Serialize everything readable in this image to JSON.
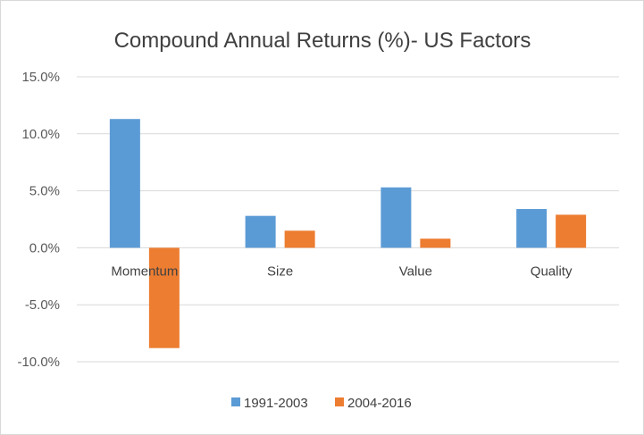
{
  "chart_data": {
    "type": "bar",
    "title": "Compound Annual Returns (%)- US Factors",
    "categories": [
      "Momentum",
      "Size",
      "Value",
      "Quality"
    ],
    "series": [
      {
        "name": "1991-2003",
        "values": [
          11.3,
          2.8,
          5.3,
          3.4
        ],
        "color": "#5b9bd5"
      },
      {
        "name": "2004-2016",
        "values": [
          -8.8,
          1.5,
          0.8,
          2.9
        ],
        "color": "#ed7d31"
      }
    ],
    "ylim": [
      -10,
      15
    ],
    "yticks": [
      15,
      10,
      5,
      0,
      -5,
      -10
    ],
    "ytick_labels": [
      "15.0%",
      "10.0%",
      "5.0%",
      "0.0%",
      "-5.0%",
      "-10.0%"
    ],
    "grid": true,
    "legend_position": "bottom"
  }
}
